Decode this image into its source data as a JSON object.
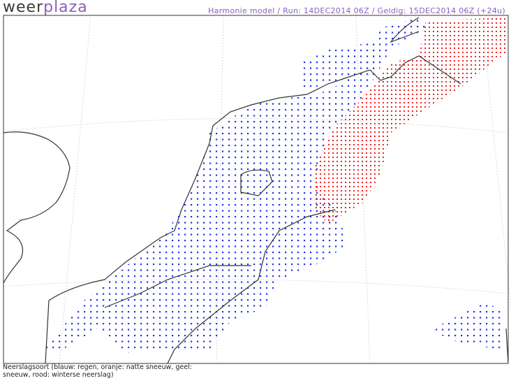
{
  "logo": {
    "part1": "weer",
    "part2": "plaza"
  },
  "header": {
    "title": "Harmonie model / Run: 14DEC2014 06Z / Geldig: 15DEC2014 06Z (+24u)"
  },
  "footer": {
    "line1": "Neerslagsoort (blauw: regen, oranje: natte sneeuw, geel:",
    "line2": "sneeuw, rood: winterse neerslag)"
  }
}
